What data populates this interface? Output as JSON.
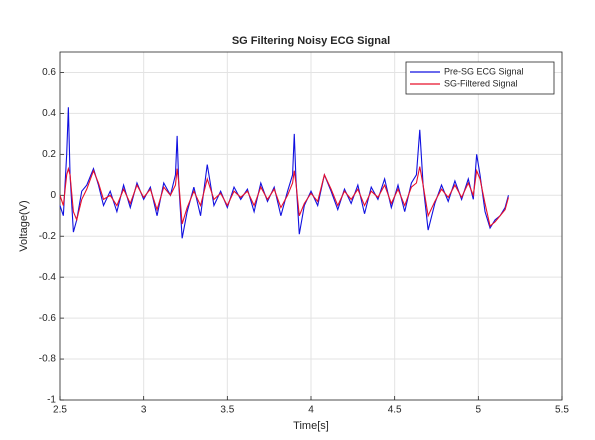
{
  "chart_data": {
    "type": "line",
    "title": "SG Filtering Noisy ECG Signal",
    "xlabel": "Time[s]",
    "ylabel": "Voltage(V)",
    "x": [
      2.5,
      2.52,
      2.54,
      2.55,
      2.56,
      2.58,
      2.6,
      2.63,
      2.66,
      2.7,
      2.73,
      2.76,
      2.8,
      2.84,
      2.88,
      2.92,
      2.96,
      3.0,
      3.04,
      3.08,
      3.12,
      3.16,
      3.19,
      3.2,
      3.21,
      3.23,
      3.26,
      3.3,
      3.34,
      3.38,
      3.42,
      3.46,
      3.5,
      3.54,
      3.58,
      3.62,
      3.66,
      3.7,
      3.74,
      3.78,
      3.82,
      3.86,
      3.89,
      3.9,
      3.91,
      3.93,
      3.96,
      4.0,
      4.04,
      4.08,
      4.12,
      4.16,
      4.2,
      4.24,
      4.28,
      4.32,
      4.36,
      4.4,
      4.44,
      4.48,
      4.52,
      4.56,
      4.6,
      4.63,
      4.65,
      4.67,
      4.7,
      4.74,
      4.78,
      4.82,
      4.86,
      4.9,
      4.94,
      4.97,
      4.99,
      5.01,
      5.04,
      5.07,
      5.1,
      5.13,
      5.16,
      5.18
    ],
    "series": [
      {
        "name": "Pre-SG ECG Signal",
        "color": "#1010e0",
        "values": [
          -0.05,
          -0.1,
          0.2,
          0.43,
          0.1,
          -0.18,
          -0.12,
          0.02,
          0.05,
          0.13,
          0.05,
          -0.05,
          0.02,
          -0.08,
          0.05,
          -0.06,
          0.06,
          -0.02,
          0.04,
          -0.1,
          0.06,
          0.0,
          0.1,
          0.29,
          0.05,
          -0.21,
          -0.08,
          0.04,
          -0.1,
          0.15,
          -0.05,
          0.02,
          -0.06,
          0.04,
          -0.02,
          0.03,
          -0.08,
          0.06,
          -0.03,
          0.04,
          -0.1,
          0.02,
          0.1,
          0.3,
          0.08,
          -0.19,
          -0.05,
          0.02,
          -0.05,
          0.1,
          0.02,
          -0.07,
          0.03,
          -0.04,
          0.05,
          -0.09,
          0.04,
          -0.02,
          0.08,
          -0.06,
          0.05,
          -0.08,
          0.06,
          0.1,
          0.32,
          0.05,
          -0.17,
          -0.04,
          0.05,
          -0.03,
          0.07,
          -0.02,
          0.08,
          -0.02,
          0.2,
          0.1,
          -0.08,
          -0.16,
          -0.12,
          -0.1,
          -0.06,
          0.0
        ]
      },
      {
        "name": "SG-Filtered Signal",
        "color": "#e8102a",
        "values": [
          0.0,
          -0.05,
          0.1,
          0.13,
          0.1,
          -0.08,
          -0.12,
          -0.02,
          0.03,
          0.12,
          0.06,
          -0.02,
          0.0,
          -0.05,
          0.03,
          -0.04,
          0.05,
          -0.01,
          0.03,
          -0.07,
          0.04,
          0.0,
          0.05,
          0.13,
          0.06,
          -0.14,
          -0.06,
          0.02,
          -0.05,
          0.08,
          -0.02,
          0.01,
          -0.05,
          0.02,
          -0.01,
          0.02,
          -0.05,
          0.04,
          -0.02,
          0.03,
          -0.06,
          0.0,
          0.06,
          0.12,
          0.06,
          -0.1,
          -0.04,
          0.01,
          -0.03,
          0.1,
          0.03,
          -0.05,
          0.02,
          -0.02,
          0.03,
          -0.05,
          0.02,
          -0.01,
          0.05,
          -0.04,
          0.03,
          -0.05,
          0.04,
          0.06,
          0.14,
          0.05,
          -0.1,
          -0.03,
          0.03,
          -0.01,
          0.05,
          -0.01,
          0.06,
          0.0,
          0.12,
          0.08,
          -0.04,
          -0.15,
          -0.13,
          -0.1,
          -0.07,
          -0.01
        ]
      }
    ],
    "xlim": [
      2.5,
      5.5
    ],
    "xticks": [
      2.5,
      3,
      3.5,
      4,
      4.5,
      5,
      5.5
    ],
    "ylim": [
      -1,
      0.7
    ],
    "yticks": [
      -1,
      -0.8,
      -0.6,
      -0.4,
      -0.2,
      0,
      0.2,
      0.4,
      0.6
    ],
    "grid": true,
    "legend": "northeast"
  }
}
